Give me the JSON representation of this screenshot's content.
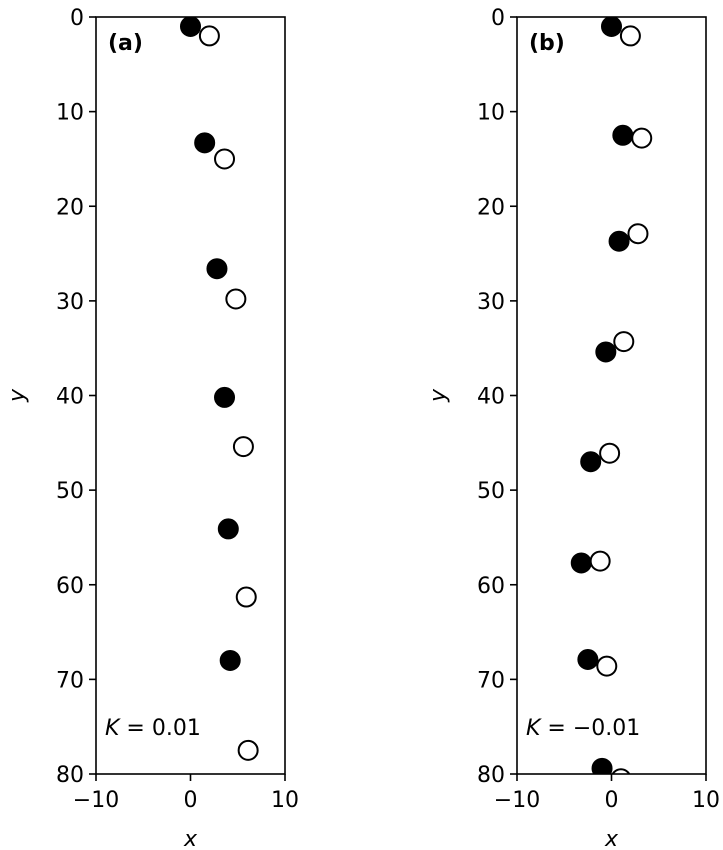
{
  "chart_data": [
    {
      "type": "scatter",
      "panel_label": "(a)",
      "annotation": {
        "var": "K",
        "text": " = 0.01"
      },
      "xlabel": "x",
      "ylabel": "y",
      "xlim": [
        -10,
        10
      ],
      "ylim": [
        80,
        0
      ],
      "y_inverted": true,
      "xticks": [
        -10,
        0,
        10
      ],
      "xtick_labels": [
        "−10",
        "0",
        "10"
      ],
      "yticks": [
        0,
        10,
        20,
        30,
        40,
        50,
        60,
        70,
        80
      ],
      "ytick_labels": [
        "0",
        "10",
        "20",
        "30",
        "40",
        "50",
        "60",
        "70",
        "80"
      ],
      "series": [
        {
          "marker": "filled",
          "color": "#000000",
          "x": [
            0.0,
            1.5,
            2.8,
            3.6,
            4.0,
            4.2
          ],
          "y": [
            1.0,
            13.3,
            26.6,
            40.2,
            54.1,
            68.0
          ]
        },
        {
          "marker": "open",
          "color": "#000000",
          "x": [
            2.0,
            3.6,
            4.8,
            5.6,
            5.9,
            6.1
          ],
          "y": [
            2.0,
            15.0,
            29.8,
            45.4,
            61.3,
            77.5
          ]
        }
      ]
    },
    {
      "type": "scatter",
      "panel_label": "(b)",
      "annotation": {
        "var": "K",
        "text": " = −0.01"
      },
      "xlabel": "x",
      "ylabel": "y",
      "xlim": [
        -10,
        10
      ],
      "ylim": [
        80,
        0
      ],
      "y_inverted": true,
      "xticks": [
        -10,
        0,
        10
      ],
      "xtick_labels": [
        "−10",
        "0",
        "10"
      ],
      "yticks": [
        0,
        10,
        20,
        30,
        40,
        50,
        60,
        70,
        80
      ],
      "ytick_labels": [
        "0",
        "10",
        "20",
        "30",
        "40",
        "50",
        "60",
        "70",
        "80"
      ],
      "series": [
        {
          "marker": "filled",
          "color": "#000000",
          "x": [
            0.0,
            1.2,
            0.8,
            -0.6,
            -2.2,
            -3.2,
            -2.5,
            -1.0
          ],
          "y": [
            1.0,
            12.5,
            23.7,
            35.4,
            47.0,
            57.7,
            67.9,
            79.4
          ]
        },
        {
          "marker": "open",
          "color": "#000000",
          "x": [
            2.0,
            3.2,
            2.8,
            1.3,
            -0.2,
            -1.2,
            -0.5,
            1.0
          ],
          "y": [
            2.0,
            12.8,
            22.9,
            34.3,
            46.1,
            57.5,
            68.6,
            80.5
          ]
        }
      ]
    }
  ]
}
